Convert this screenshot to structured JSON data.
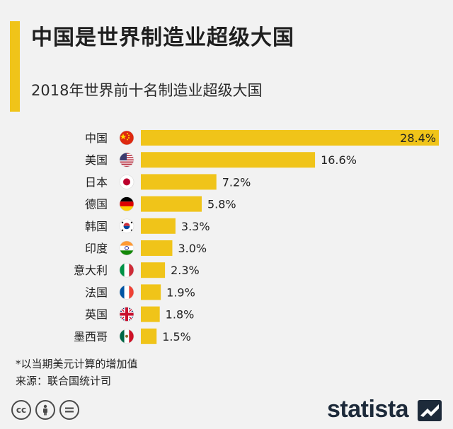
{
  "header": {
    "title": "中国是世界制造业超级大国",
    "subtitle": "2018年世界前十名制造业超级大国"
  },
  "chart_data": {
    "type": "bar",
    "orientation": "horizontal",
    "categories": [
      "中国",
      "美国",
      "日本",
      "德国",
      "韩国",
      "印度",
      "意大利",
      "法国",
      "英国",
      "墨西哥"
    ],
    "values": [
      28.4,
      16.6,
      7.2,
      5.8,
      3.3,
      3.0,
      2.3,
      1.9,
      1.8,
      1.5
    ],
    "labels": [
      "28.4%",
      "16.6%",
      "7.2%",
      "5.8%",
      "3.3%",
      "3.0%",
      "2.3%",
      "1.9%",
      "1.8%",
      "1.5%"
    ],
    "flags": [
      "flag-china-icon",
      "flag-usa-icon",
      "flag-japan-icon",
      "flag-germany-icon",
      "flag-korea-icon",
      "flag-india-icon",
      "flag-italy-icon",
      "flag-france-icon",
      "flag-uk-icon",
      "flag-mexico-icon"
    ],
    "bar_color": "#f0c419",
    "xlim": [
      0,
      28.4
    ],
    "grid": false
  },
  "footer": {
    "note": "*以当期美元计算的增加值",
    "source": "来源：联合国统计司",
    "brand": "statista",
    "license_icons": [
      "cc-icon",
      "by-icon",
      "nd-icon"
    ]
  }
}
